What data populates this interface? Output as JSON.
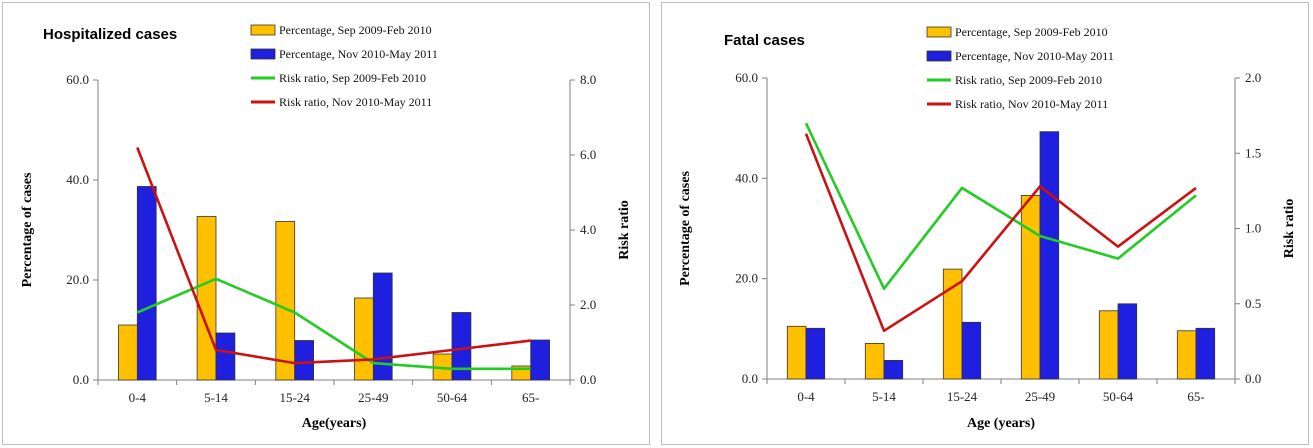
{
  "chart_data": [
    {
      "type": "bar",
      "title": "Hospitalized cases",
      "categories": [
        "0-4",
        "5-14",
        "15-24",
        "25-49",
        "50-64",
        "65-"
      ],
      "xlabel": "Age(years)",
      "ylabel": "Percentage of cases",
      "y2label": "Risk ratio",
      "ylim": [
        0,
        60
      ],
      "y2lim": [
        0,
        8
      ],
      "yticks": [
        "0.0",
        "20.0",
        "40.0",
        "60.0"
      ],
      "y2ticks": [
        "0.0",
        "2.0",
        "4.0",
        "6.0",
        "8.0"
      ],
      "legend_position": "top-right",
      "series": [
        {
          "name": "Percentage, Sep 2009-Feb 2010",
          "kind": "bar",
          "axis": "left",
          "color": "#FFC000",
          "values": [
            11.0,
            32.7,
            31.7,
            16.4,
            5.2,
            2.8
          ]
        },
        {
          "name": "Percentage, Nov 2010-May 2011",
          "kind": "bar",
          "axis": "left",
          "color": "#1F1FE0",
          "values": [
            38.7,
            9.4,
            7.9,
            21.4,
            13.5,
            8.0
          ]
        },
        {
          "name": "Risk ratio, Sep 2009-Feb 2010",
          "kind": "line",
          "axis": "right",
          "color": "#22CC22",
          "values": [
            1.8,
            2.7,
            1.8,
            0.45,
            0.3,
            0.3
          ]
        },
        {
          "name": "Risk ratio, Nov 2010-May 2011",
          "kind": "line",
          "axis": "right",
          "color": "#CC1111",
          "values": [
            6.2,
            0.8,
            0.45,
            0.55,
            0.8,
            1.05
          ]
        }
      ]
    },
    {
      "type": "bar",
      "title": "Fatal cases",
      "categories": [
        "0-4",
        "5-14",
        "15-24",
        "25-49",
        "50-64",
        "65-"
      ],
      "xlabel": "Age (years)",
      "ylabel": "Percentage of cases",
      "y2label": "Risk ratio",
      "ylim": [
        0,
        60
      ],
      "y2lim": [
        0,
        2
      ],
      "yticks": [
        "0.0",
        "20.0",
        "40.0",
        "60.0"
      ],
      "y2ticks": [
        "0.0",
        "0.5",
        "1.0",
        "1.5",
        "2.0"
      ],
      "legend_position": "top-center",
      "series": [
        {
          "name": "Percentage, Sep 2009-Feb 2010",
          "kind": "bar",
          "axis": "left",
          "color": "#FFC000",
          "values": [
            10.5,
            7.1,
            21.9,
            36.6,
            13.6,
            9.6
          ]
        },
        {
          "name": "Percentage, Nov 2010-May 2011",
          "kind": "bar",
          "axis": "left",
          "color": "#1F1FE0",
          "values": [
            10.1,
            3.7,
            11.3,
            49.3,
            15.0,
            10.1
          ]
        },
        {
          "name": "Risk ratio, Sep 2009-Feb 2010",
          "kind": "line",
          "axis": "right",
          "color": "#22CC22",
          "values": [
            1.7,
            0.6,
            1.27,
            0.95,
            0.8,
            1.22
          ]
        },
        {
          "name": "Risk ratio, Nov 2010-May 2011",
          "kind": "line",
          "axis": "right",
          "color": "#CC1111",
          "values": [
            1.63,
            0.32,
            0.65,
            1.28,
            0.88,
            1.27
          ]
        }
      ]
    }
  ]
}
